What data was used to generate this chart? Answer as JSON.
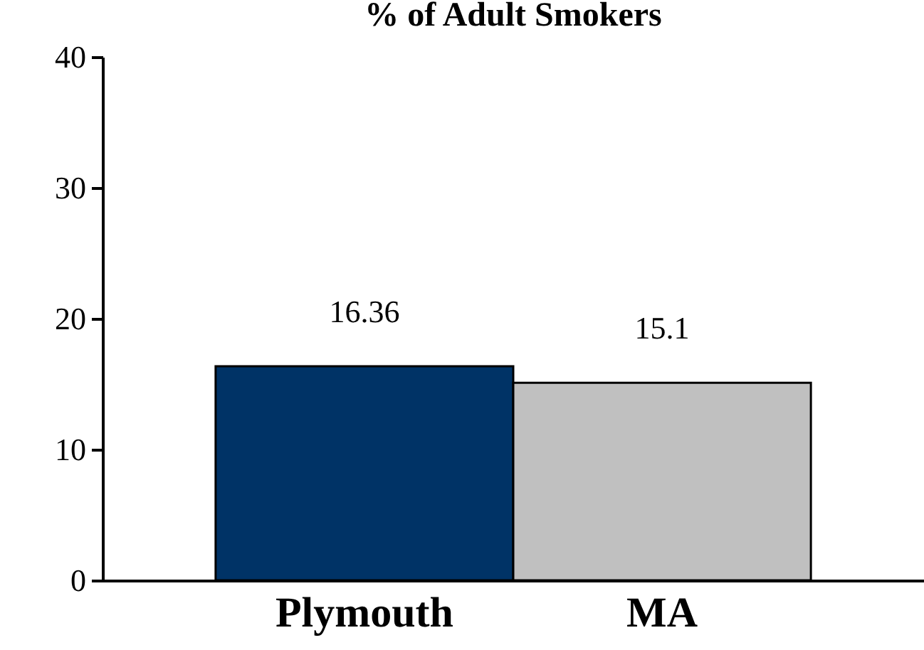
{
  "chart_data": {
    "type": "bar",
    "title": "% of Adult Smokers",
    "categories": [
      "Plymouth",
      "MA"
    ],
    "values": [
      16.36,
      15.1
    ],
    "colors": [
      "#003366",
      "#c0c0c0"
    ],
    "ylim": [
      0,
      40
    ],
    "yticks": [
      0,
      10,
      20,
      30,
      40
    ],
    "data_labels": true,
    "grid": false
  }
}
